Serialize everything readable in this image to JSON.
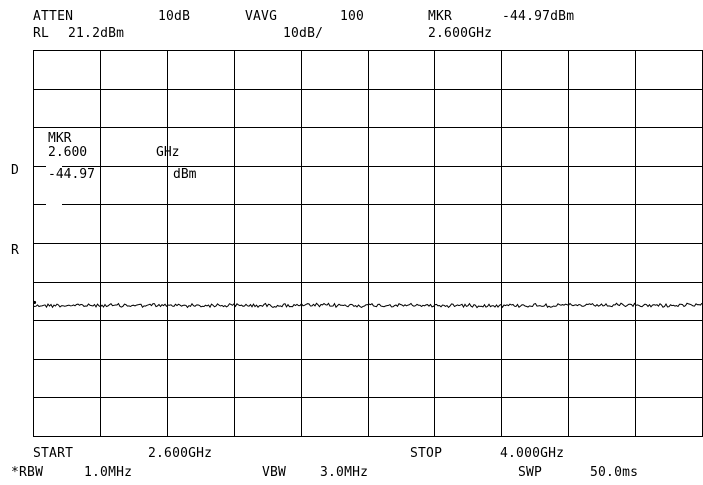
{
  "header": {
    "atten_label": "ATTEN",
    "atten_value": "10dB",
    "vavg_label": "VAVG",
    "vavg_value": "100",
    "mkr_label": "MKR",
    "mkr_value": "-44.97dBm",
    "rl_label": "RL",
    "rl_value": "21.2dBm",
    "scale": "10dB/",
    "mkr_freq": "2.600GHz"
  },
  "marker_readout": {
    "label": "MKR",
    "freq_value": "2.600",
    "freq_unit": "GHz",
    "amp_value": "-44.97",
    "amp_unit": "dBm"
  },
  "side_labels": {
    "d": "D",
    "r": "R"
  },
  "footer": {
    "start_label": "START",
    "start_value": "2.600GHz",
    "stop_label": "STOP",
    "stop_value": "4.000GHz",
    "rbw_label": "*RBW",
    "rbw_value": "1.0MHz",
    "vbw_label": "VBW",
    "vbw_value": "3.0MHz",
    "swp_label": "SWP",
    "swp_value": "50.0ms"
  },
  "trace": {
    "level_dbm": -44.97,
    "reference_level_dbm": 21.2,
    "db_per_division": 10,
    "divisions": 10,
    "color": "#000000"
  }
}
